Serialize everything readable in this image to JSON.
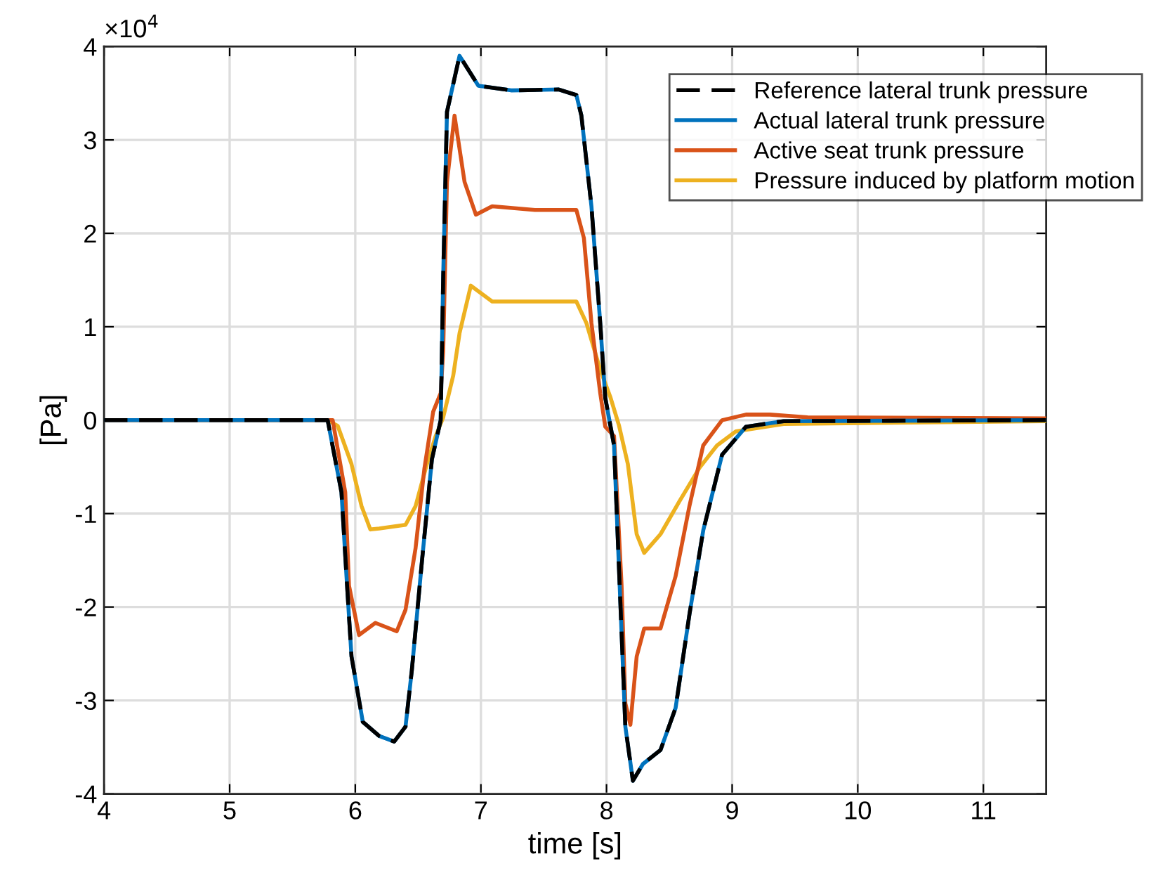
{
  "chart_data": {
    "type": "line",
    "xlabel": "time [s]",
    "ylabel": "[Pa]",
    "annotations": [
      "×10$^{4}$"
    ],
    "xlim": [
      4,
      11.5
    ],
    "xticks": [
      4,
      5,
      6,
      7,
      8,
      9,
      10,
      11
    ],
    "ylim": [
      -4,
      4
    ],
    "yticks": [
      -4,
      -3,
      -2,
      -1,
      0,
      1,
      2,
      3,
      4
    ],
    "grid": true,
    "legend": "top right",
    "series": [
      {
        "name": "Reference lateral trunk pressure",
        "color": "#000000",
        "line_style": "dashed",
        "x": [
          4,
          5.78,
          5.89,
          5.93,
          5.97,
          6.06,
          6.19,
          6.31,
          6.4,
          6.45,
          6.53,
          6.61,
          6.68,
          6.7,
          6.73,
          6.83,
          6.98,
          7.24,
          7.62,
          7.76,
          7.8,
          7.88,
          7.95,
          7.99,
          8.06,
          8.12,
          8.15,
          8.21,
          8.29,
          8.43,
          8.55,
          8.66,
          8.77,
          8.92,
          9.11,
          9.41,
          11.5
        ],
        "values": [
          0,
          0,
          -0.77,
          -1.67,
          -2.53,
          -3.23,
          -3.38,
          -3.44,
          -3.28,
          -2.68,
          -1.52,
          -0.42,
          0,
          1.54,
          3.3,
          3.9,
          3.58,
          3.53,
          3.54,
          3.48,
          3.26,
          2.29,
          1.04,
          0.24,
          -0.27,
          -2.28,
          -3.28,
          -3.86,
          -3.68,
          -3.53,
          -3.08,
          -2.08,
          -1.18,
          -0.37,
          -0.07,
          -0.01,
          0
        ]
      },
      {
        "name": "Actual lateral trunk pressure",
        "color": "#0072bd",
        "line_style": "solid",
        "x": [
          4,
          5.78,
          5.89,
          5.93,
          5.97,
          6.06,
          6.19,
          6.31,
          6.4,
          6.45,
          6.53,
          6.61,
          6.68,
          6.7,
          6.73,
          6.83,
          6.98,
          7.24,
          7.62,
          7.76,
          7.8,
          7.88,
          7.95,
          7.99,
          8.06,
          8.12,
          8.15,
          8.21,
          8.29,
          8.43,
          8.55,
          8.66,
          8.77,
          8.92,
          9.11,
          9.41,
          11.5
        ],
        "values": [
          0,
          0,
          -0.77,
          -1.67,
          -2.53,
          -3.23,
          -3.38,
          -3.44,
          -3.28,
          -2.68,
          -1.52,
          -0.42,
          0,
          1.54,
          3.3,
          3.9,
          3.58,
          3.53,
          3.54,
          3.48,
          3.26,
          2.29,
          1.04,
          0.24,
          -0.27,
          -2.28,
          -3.28,
          -3.86,
          -3.68,
          -3.53,
          -3.08,
          -2.08,
          -1.18,
          -0.37,
          -0.07,
          -0.01,
          0
        ]
      },
      {
        "name": "Active seat trunk pressure",
        "color": "#d95319",
        "line_style": "solid",
        "x": [
          4,
          5.82,
          5.92,
          5.95,
          6.03,
          6.16,
          6.33,
          6.4,
          6.48,
          6.55,
          6.62,
          6.68,
          6.7,
          6.73,
          6.79,
          6.87,
          6.96,
          7.09,
          7.43,
          7.76,
          7.82,
          7.88,
          7.95,
          7.99,
          8.06,
          8.12,
          8.15,
          8.19,
          8.24,
          8.3,
          8.43,
          8.55,
          8.66,
          8.77,
          8.92,
          9.11,
          9.3,
          9.6,
          11.5
        ],
        "values": [
          0,
          0,
          -0.77,
          -1.77,
          -2.3,
          -2.17,
          -2.26,
          -2.03,
          -1.37,
          -0.52,
          0.09,
          0.29,
          0.74,
          2.55,
          3.26,
          2.55,
          2.2,
          2.29,
          2.25,
          2.25,
          1.95,
          1.04,
          0.29,
          -0.07,
          -0.17,
          -1.77,
          -3.03,
          -3.26,
          -2.53,
          -2.23,
          -2.23,
          -1.67,
          -0.92,
          -0.27,
          0,
          0.06,
          0.06,
          0.03,
          0.02
        ]
      },
      {
        "name": "Pressure induced by platform motion",
        "color": "#edb120",
        "line_style": "solid",
        "x": [
          4,
          5.78,
          5.86,
          5.97,
          6.05,
          6.12,
          6.19,
          6.4,
          6.48,
          6.57,
          6.64,
          6.7,
          6.78,
          6.83,
          6.92,
          7.09,
          7.43,
          7.76,
          7.84,
          7.95,
          8.03,
          8.1,
          8.17,
          8.24,
          8.3,
          8.43,
          8.58,
          8.74,
          8.88,
          9.03,
          9.41,
          11.5
        ],
        "values": [
          0,
          0,
          -0.06,
          -0.47,
          -0.92,
          -1.17,
          -1.16,
          -1.12,
          -0.92,
          -0.47,
          -0.17,
          0.03,
          0.48,
          0.93,
          1.44,
          1.27,
          1.27,
          1.27,
          1.04,
          0.54,
          0.25,
          -0.06,
          -0.47,
          -1.22,
          -1.42,
          -1.22,
          -0.87,
          -0.51,
          -0.27,
          -0.12,
          -0.04,
          -0.01
        ]
      }
    ]
  }
}
